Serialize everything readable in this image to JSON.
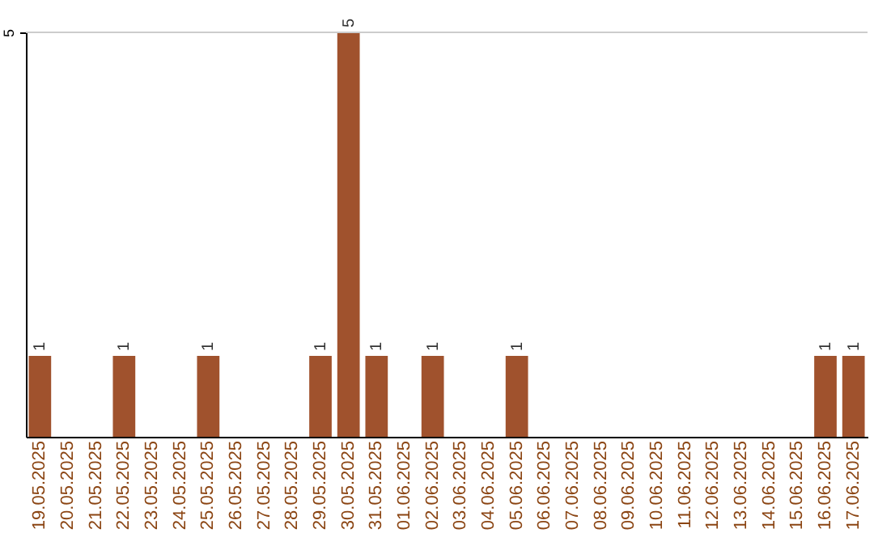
{
  "chart_data": {
    "type": "bar",
    "categories": [
      "19.05.2025",
      "20.05.2025",
      "21.05.2025",
      "22.05.2025",
      "23.05.2025",
      "24.05.2025",
      "25.05.2025",
      "26.05.2025",
      "27.05.2025",
      "28.05.2025",
      "29.05.2025",
      "30.05.2025",
      "31.05.2025",
      "01.06.2025",
      "02.06.2025",
      "03.06.2025",
      "04.06.2025",
      "05.06.2025",
      "06.06.2025",
      "07.06.2025",
      "08.06.2025",
      "09.06.2025",
      "10.06.2025",
      "11.06.2025",
      "12.06.2025",
      "13.06.2025",
      "14.06.2025",
      "15.06.2025",
      "16.06.2025",
      "17.06.2025"
    ],
    "values": [
      1,
      0,
      0,
      1,
      0,
      0,
      1,
      0,
      0,
      0,
      1,
      5,
      1,
      0,
      1,
      0,
      0,
      1,
      0,
      0,
      0,
      0,
      0,
      0,
      0,
      0,
      0,
      0,
      1,
      1
    ],
    "value_labels": [
      "1",
      null,
      null,
      "1",
      null,
      null,
      "1",
      null,
      null,
      null,
      "1",
      "5",
      "1",
      null,
      "1",
      null,
      null,
      "1",
      null,
      null,
      null,
      null,
      null,
      null,
      null,
      null,
      null,
      null,
      "1",
      "1"
    ],
    "color": "#a0522d",
    "ylim": [
      0,
      5
    ],
    "yticks": [
      5
    ],
    "ref_lines": [
      {
        "axis": "y",
        "value": 5,
        "color": "#cccccc"
      }
    ]
  }
}
